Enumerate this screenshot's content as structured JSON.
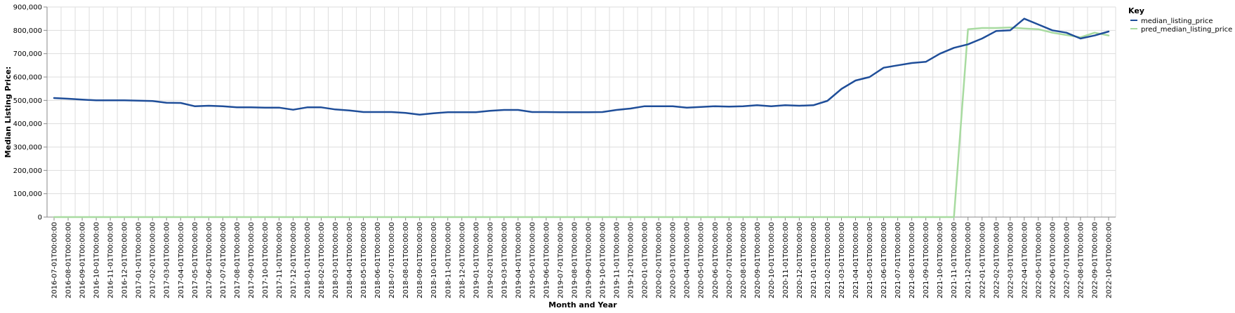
{
  "chart_data": {
    "type": "line",
    "xlabel": "Month and Year",
    "ylabel": "Median Listing Price:",
    "ylim": [
      0,
      900000
    ],
    "yticks": [
      "0",
      "100,000",
      "200,000",
      "300,000",
      "400,000",
      "500,000",
      "600,000",
      "700,000",
      "800,000",
      "900,000"
    ],
    "grid": true,
    "legend_title": "Key",
    "legend_placement": "top-right",
    "categories": [
      "2016-07-01T00:00:00",
      "2016-08-01T00:00:00",
      "2016-09-01T00:00:00",
      "2016-10-01T00:00:00",
      "2016-11-01T00:00:00",
      "2016-12-01T00:00:00",
      "2017-01-01T00:00:00",
      "2017-02-01T00:00:00",
      "2017-03-01T00:00:00",
      "2017-04-01T00:00:00",
      "2017-05-01T00:00:00",
      "2017-06-01T00:00:00",
      "2017-07-01T00:00:00",
      "2017-08-01T00:00:00",
      "2017-09-01T00:00:00",
      "2017-10-01T00:00:00",
      "2017-11-01T00:00:00",
      "2017-12-01T00:00:00",
      "2018-01-01T00:00:00",
      "2018-02-01T00:00:00",
      "2018-03-01T00:00:00",
      "2018-04-01T00:00:00",
      "2018-05-01T00:00:00",
      "2018-06-01T00:00:00",
      "2018-07-01T00:00:00",
      "2018-08-01T00:00:00",
      "2018-09-01T00:00:00",
      "2018-10-01T00:00:00",
      "2018-11-01T00:00:00",
      "2018-12-01T00:00:00",
      "2019-01-01T00:00:00",
      "2019-02-01T00:00:00",
      "2019-03-01T00:00:00",
      "2019-04-01T00:00:00",
      "2019-05-01T00:00:00",
      "2019-06-01T00:00:00",
      "2019-07-01T00:00:00",
      "2019-08-01T00:00:00",
      "2019-09-01T00:00:00",
      "2019-10-01T00:00:00",
      "2019-11-01T00:00:00",
      "2019-12-01T00:00:00",
      "2020-01-01T00:00:00",
      "2020-02-01T00:00:00",
      "2020-03-01T00:00:00",
      "2020-04-01T00:00:00",
      "2020-05-01T00:00:00",
      "2020-06-01T00:00:00",
      "2020-07-01T00:00:00",
      "2020-08-01T00:00:00",
      "2020-09-01T00:00:00",
      "2020-10-01T00:00:00",
      "2020-11-01T00:00:00",
      "2020-12-01T00:00:00",
      "2021-01-01T00:00:00",
      "2021-02-01T00:00:00",
      "2021-03-01T00:00:00",
      "2021-04-01T00:00:00",
      "2021-05-01T00:00:00",
      "2021-06-01T00:00:00",
      "2021-07-01T00:00:00",
      "2021-08-01T00:00:00",
      "2021-09-01T00:00:00",
      "2021-10-01T00:00:00",
      "2021-11-01T00:00:00",
      "2021-12-01T00:00:00",
      "2022-01-01T00:00:00",
      "2022-02-01T00:00:00",
      "2022-03-01T00:00:00",
      "2022-04-01T00:00:00",
      "2022-05-01T00:00:00",
      "2022-06-01T00:00:00",
      "2022-07-01T00:00:00",
      "2022-08-01T00:00:00",
      "2022-09-01T00:00:00",
      "2022-10-01T00:00:00"
    ],
    "series": [
      {
        "name": "median_listing_price",
        "color": "#1f4e99",
        "values": [
          510000,
          507000,
          503000,
          500000,
          500000,
          500000,
          499000,
          497000,
          490000,
          489000,
          475000,
          477000,
          475000,
          470000,
          470000,
          469000,
          469000,
          460000,
          470000,
          470000,
          461000,
          457000,
          450000,
          450000,
          450000,
          446000,
          439000,
          445000,
          449000,
          449000,
          449000,
          455000,
          459000,
          459000,
          450000,
          450000,
          449000,
          449000,
          449000,
          450000,
          459000,
          465000,
          475000,
          475000,
          475000,
          469000,
          472000,
          475000,
          473000,
          475000,
          479000,
          475000,
          479000,
          477000,
          479000,
          498000,
          549000,
          585000,
          600000,
          640000,
          650000,
          660000,
          665000,
          700000,
          725000,
          740000,
          765000,
          797000,
          800000,
          850000,
          825000,
          800000,
          790000,
          765000,
          778000,
          795000
        ]
      },
      {
        "name": "pred_median_listing_price",
        "color": "#a8dba0",
        "values": [
          0,
          0,
          0,
          0,
          0,
          0,
          0,
          0,
          0,
          0,
          0,
          0,
          0,
          0,
          0,
          0,
          0,
          0,
          0,
          0,
          0,
          0,
          0,
          0,
          0,
          0,
          0,
          0,
          0,
          0,
          0,
          0,
          0,
          0,
          0,
          0,
          0,
          0,
          0,
          0,
          0,
          0,
          0,
          0,
          0,
          0,
          0,
          0,
          0,
          0,
          0,
          0,
          0,
          0,
          0,
          0,
          0,
          0,
          0,
          0,
          0,
          0,
          0,
          0,
          0,
          805000,
          810000,
          810000,
          812000,
          808000,
          805000,
          790000,
          780000,
          770000,
          790000,
          778000
        ]
      }
    ]
  }
}
